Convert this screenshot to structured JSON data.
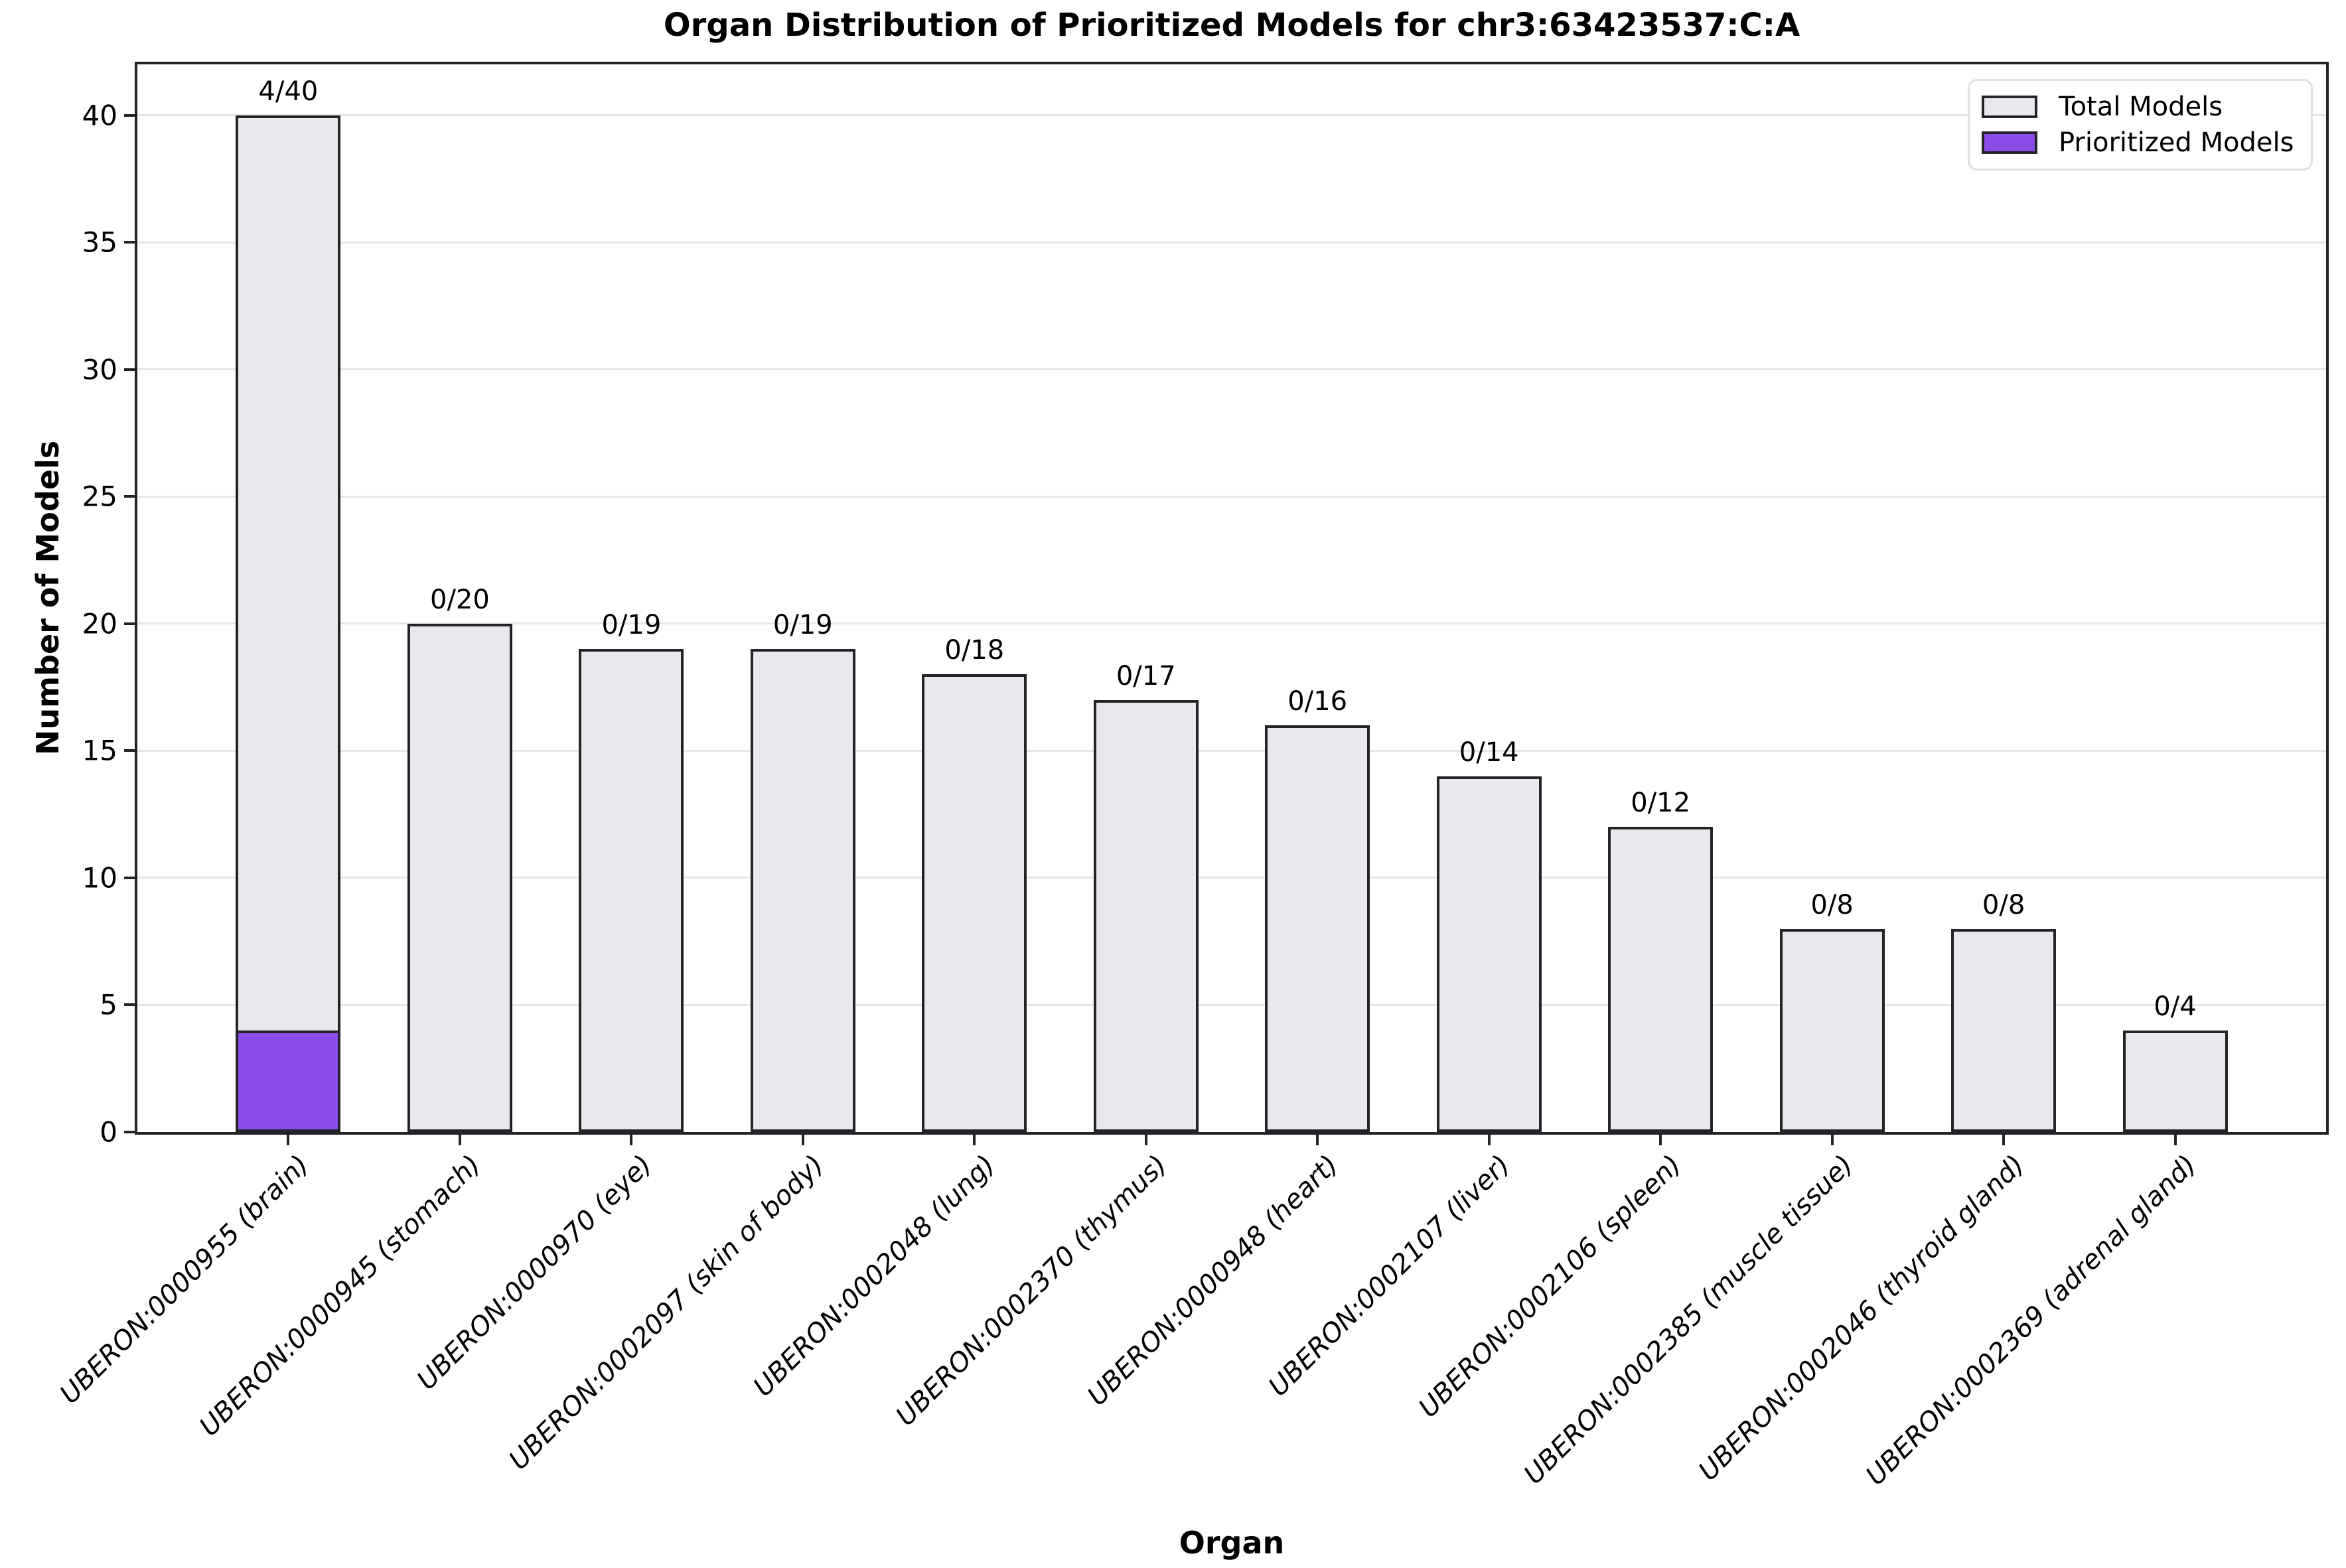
{
  "title": "Organ Distribution of Prioritized Models for chr3:63423537:C:A",
  "chart_data": {
    "type": "bar",
    "title": "Organ Distribution of Prioritized Models for chr3:63423537:C:A",
    "xlabel": "Organ",
    "ylabel": "Number of Models",
    "categories": [
      "UBERON:0000955 (brain)",
      "UBERON:0000945 (stomach)",
      "UBERON:0000970 (eye)",
      "UBERON:0002097 (skin of body)",
      "UBERON:0002048 (lung)",
      "UBERON:0002370 (thymus)",
      "UBERON:0000948 (heart)",
      "UBERON:0002107 (liver)",
      "UBERON:0002106 (spleen)",
      "UBERON:0002385 (muscle tissue)",
      "UBERON:0002046 (thyroid gland)",
      "UBERON:0002369 (adrenal gland)"
    ],
    "series": [
      {
        "name": "Total Models",
        "color": "#e8e9ed",
        "values": [
          40,
          20,
          19,
          19,
          18,
          17,
          16,
          14,
          12,
          8,
          8,
          4
        ]
      },
      {
        "name": "Prioritized Models",
        "color": "#8a4be9",
        "values": [
          4,
          0,
          0,
          0,
          0,
          0,
          0,
          0,
          0,
          0,
          0,
          0
        ]
      }
    ],
    "bar_labels": [
      "4/40",
      "0/20",
      "0/19",
      "0/19",
      "0/18",
      "0/17",
      "0/16",
      "0/14",
      "0/12",
      "0/8",
      "0/8",
      "0/4"
    ],
    "ylim": [
      0,
      42
    ],
    "yticks": [
      0,
      5,
      10,
      15,
      20,
      25,
      30,
      35,
      40
    ],
    "grid": true,
    "legend_position": "upper right",
    "edge_color": "#242428",
    "grid_color": "#e6e6e6"
  },
  "legend": {
    "items": [
      {
        "label": "Total Models",
        "color": "#e8e9ed"
      },
      {
        "label": "Prioritized Models",
        "color": "#8a4be9"
      }
    ]
  }
}
